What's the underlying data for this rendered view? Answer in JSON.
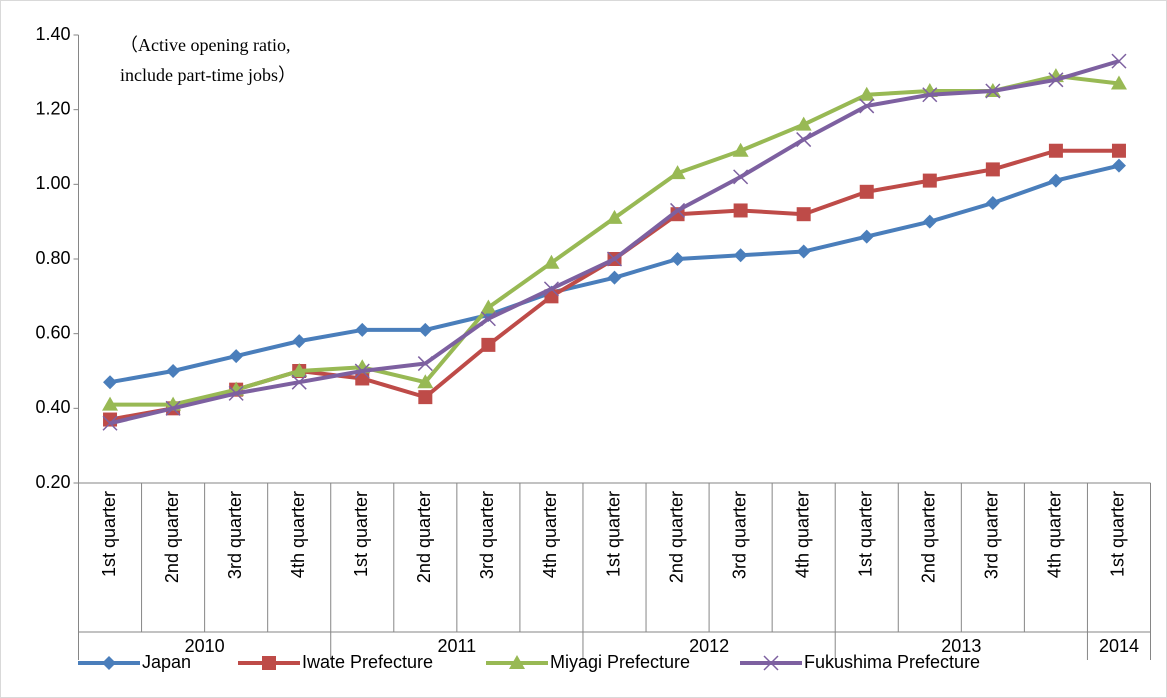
{
  "chart_data": {
    "type": "line",
    "annotation": [
      "（Active opening ratio,",
      "include part-time jobs）"
    ],
    "categories": [
      "1st quarter",
      "2nd quarter",
      "3rd quarter",
      "4th quarter",
      "1st quarter",
      "2nd quarter",
      "3rd quarter",
      "4th quarter",
      "1st quarter",
      "2nd quarter",
      "3rd quarter",
      "4th quarter",
      "1st quarter",
      "2nd quarter",
      "3rd quarter",
      "4th quarter",
      "1st quarter"
    ],
    "years": [
      "2010",
      null,
      null,
      null,
      "2011",
      null,
      null,
      null,
      "2012",
      null,
      null,
      null,
      "2013",
      null,
      null,
      null,
      "2014"
    ],
    "ylim": [
      0.2,
      1.4
    ],
    "yticks": [
      {
        "value": 0.2,
        "label": "0.20"
      },
      {
        "value": 0.4,
        "label": "0.40"
      },
      {
        "value": 0.6,
        "label": "0.60"
      },
      {
        "value": 0.8,
        "label": "0.80"
      },
      {
        "value": 1.0,
        "label": "1.00"
      },
      {
        "value": 1.2,
        "label": "1.20"
      },
      {
        "value": 1.4,
        "label": "1.40"
      }
    ],
    "legend": "bottom",
    "series": [
      {
        "name": "Japan",
        "color": "#4a7ebb",
        "marker": "diamond",
        "values": [
          0.47,
          0.5,
          0.54,
          0.58,
          0.61,
          0.61,
          0.65,
          0.71,
          0.75,
          0.8,
          0.81,
          0.82,
          0.86,
          0.9,
          0.95,
          1.01,
          1.05
        ]
      },
      {
        "name": "Iwate Prefecture",
        "color": "#be4b48",
        "marker": "square",
        "values": [
          0.37,
          0.4,
          0.45,
          0.5,
          0.48,
          0.43,
          0.57,
          0.7,
          0.8,
          0.92,
          0.93,
          0.92,
          0.98,
          1.01,
          1.04,
          1.09,
          1.09
        ]
      },
      {
        "name": "Miyagi Prefecture",
        "color": "#98b954",
        "marker": "triangle",
        "values": [
          0.41,
          0.41,
          0.45,
          0.5,
          0.51,
          0.47,
          0.67,
          0.79,
          0.91,
          1.03,
          1.09,
          1.16,
          1.24,
          1.25,
          1.25,
          1.29,
          1.27
        ]
      },
      {
        "name": "Fukushima Prefecture",
        "color": "#7d60a0",
        "marker": "x",
        "values": [
          0.36,
          0.4,
          0.44,
          0.47,
          0.5,
          0.52,
          0.64,
          0.72,
          0.8,
          0.93,
          1.02,
          1.12,
          1.21,
          1.24,
          1.25,
          1.28,
          1.33
        ]
      }
    ]
  }
}
